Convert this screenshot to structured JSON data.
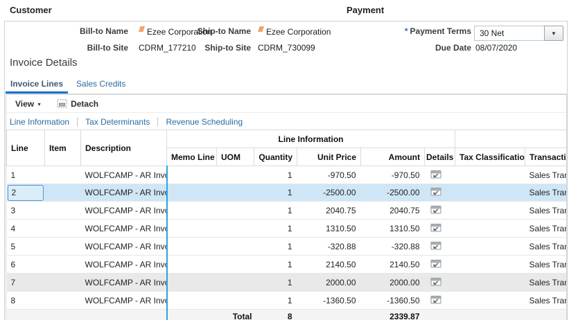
{
  "customer": {
    "title": "Customer",
    "bill_to_name": {
      "label": "Bill-to Name",
      "value": "Ezee Corporation"
    },
    "bill_to_site": {
      "label": "Bill-to Site",
      "value": "CDRM_177210"
    },
    "ship_to_name": {
      "label": "Ship-to Name",
      "value": "Ezee Corporation"
    },
    "ship_to_site": {
      "label": "Ship-to Site",
      "value": "CDRM_730099"
    }
  },
  "payment": {
    "title": "Payment",
    "payment_terms": {
      "label": "Payment Terms",
      "value": "30 Net",
      "required": "*"
    },
    "due_date": {
      "label": "Due Date",
      "value": "08/07/2020"
    }
  },
  "invoice_details": {
    "title": "Invoice Details",
    "tabs": [
      {
        "label": "Invoice Lines",
        "active": true
      },
      {
        "label": "Sales Credits",
        "active": false
      }
    ],
    "toolbar": {
      "view_label": "View",
      "detach_label": "Detach"
    },
    "links": [
      "Line Information",
      "Tax Determinants",
      "Revenue Scheduling"
    ]
  },
  "table": {
    "group_header": "Line Information",
    "columns": [
      "Line",
      "Item",
      "Description",
      "Memo Line",
      "UOM",
      "Quantity",
      "Unit Price",
      "Amount",
      "Details",
      "Tax Classification",
      "Transactio"
    ],
    "rows": [
      {
        "line": "1",
        "item": "",
        "description": "WOLFCAMP - AR Invoice",
        "memo_line": "",
        "uom": "",
        "quantity": "1",
        "unit_price": "-970.50",
        "amount": "-970.50",
        "details": true,
        "tax_classification": "",
        "transaction": "Sales Transa",
        "selected": false,
        "shaded": false
      },
      {
        "line": "2",
        "item": "",
        "description": "WOLFCAMP - AR Invoice",
        "memo_line": "",
        "uom": "",
        "quantity": "1",
        "unit_price": "-2500.00",
        "amount": "-2500.00",
        "details": true,
        "tax_classification": "",
        "transaction": "Sales Transa",
        "selected": true,
        "shaded": false
      },
      {
        "line": "3",
        "item": "",
        "description": "WOLFCAMP - AR Invoice",
        "memo_line": "",
        "uom": "",
        "quantity": "1",
        "unit_price": "2040.75",
        "amount": "2040.75",
        "details": true,
        "tax_classification": "",
        "transaction": "Sales Transa",
        "selected": false,
        "shaded": false
      },
      {
        "line": "4",
        "item": "",
        "description": "WOLFCAMP - AR Invoice",
        "memo_line": "",
        "uom": "",
        "quantity": "1",
        "unit_price": "1310.50",
        "amount": "1310.50",
        "details": true,
        "tax_classification": "",
        "transaction": "Sales Transa",
        "selected": false,
        "shaded": false
      },
      {
        "line": "5",
        "item": "",
        "description": "WOLFCAMP - AR Invoice",
        "memo_line": "",
        "uom": "",
        "quantity": "1",
        "unit_price": "-320.88",
        "amount": "-320.88",
        "details": true,
        "tax_classification": "",
        "transaction": "Sales Transa",
        "selected": false,
        "shaded": false
      },
      {
        "line": "6",
        "item": "",
        "description": "WOLFCAMP - AR Invoice",
        "memo_line": "",
        "uom": "",
        "quantity": "1",
        "unit_price": "2140.50",
        "amount": "2140.50",
        "details": true,
        "tax_classification": "",
        "transaction": "Sales Transa",
        "selected": false,
        "shaded": false
      },
      {
        "line": "7",
        "item": "",
        "description": "WOLFCAMP - AR Invoice",
        "memo_line": "",
        "uom": "",
        "quantity": "1",
        "unit_price": "2000.00",
        "amount": "2000.00",
        "details": true,
        "tax_classification": "",
        "transaction": "Sales Transa",
        "selected": false,
        "shaded": true
      },
      {
        "line": "8",
        "item": "",
        "description": "WOLFCAMP - AR Invoice",
        "memo_line": "",
        "uom": "",
        "quantity": "1",
        "unit_price": "-1360.50",
        "amount": "-1360.50",
        "details": true,
        "tax_classification": "",
        "transaction": "Sales Transa",
        "selected": false,
        "shaded": false
      }
    ],
    "total": {
      "label": "Total",
      "quantity": "8",
      "amount": "2339.87"
    }
  },
  "colors": {
    "tab_accent_blue": "#1470cc",
    "link_blue": "#2a6b9f",
    "selected_row": "#cfe6f7",
    "shaded_row": "#e9e9e9",
    "frozen_divider_blue": "#2aa5dc",
    "required_asterisk_blue": "#2b6cb8",
    "flag_marker_orange": "#f2a469",
    "total_row_bg": "#f4f4f4"
  }
}
